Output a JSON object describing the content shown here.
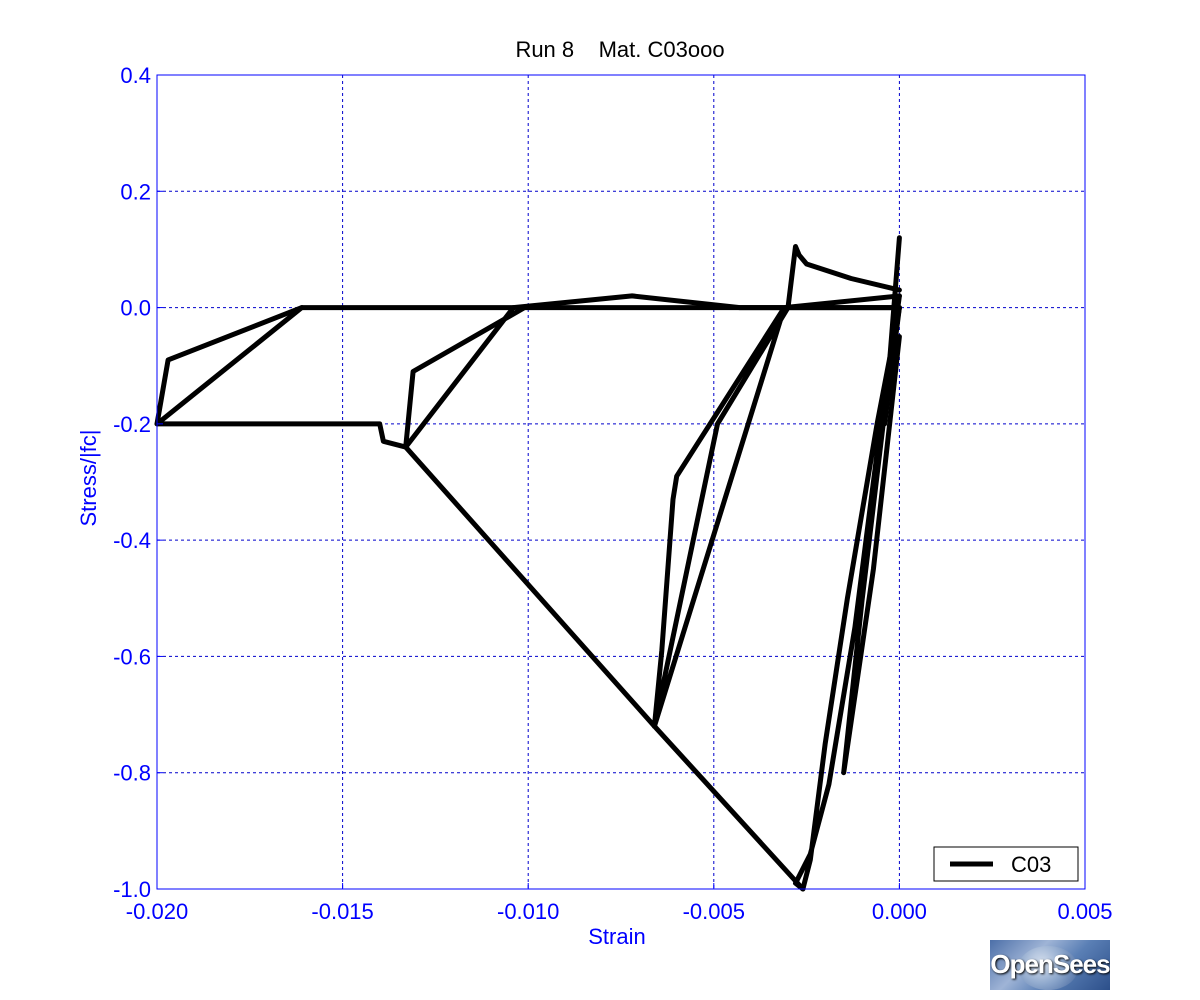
{
  "colors": {
    "axis": "#0000ff",
    "grid": "#0000cc",
    "series": "#000000"
  },
  "logo": {
    "text": "OpenSees"
  },
  "chart_data": {
    "type": "line",
    "title": "Run 8    Mat. C03ooo",
    "xlabel": "Strain",
    "ylabel": "Stress/|fc|",
    "xlim": [
      -0.02,
      0.005
    ],
    "ylim": [
      -1.0,
      0.4
    ],
    "xticks": [
      -0.02,
      -0.015,
      -0.01,
      -0.005,
      0.0,
      0.005
    ],
    "xtick_labels": [
      "-0.020",
      "-0.015",
      "-0.010",
      "-0.005",
      "0.000",
      "0.005"
    ],
    "yticks": [
      0.4,
      0.2,
      0.0,
      -0.2,
      -0.4,
      -0.6,
      -0.8,
      -1.0
    ],
    "ytick_labels": [
      "0.4",
      "0.2",
      "0.0",
      "-0.2",
      "-0.4",
      "-0.6",
      "-0.8",
      "-1.0"
    ],
    "grid": true,
    "legend_position": "bottom-right",
    "series": [
      {
        "name": "C03",
        "color": "#000000",
        "segments": [
          [
            [
              0.0,
              0.0
            ],
            [
              -0.0006,
              -0.2
            ],
            [
              -0.0014,
              -0.5
            ],
            [
              -0.002,
              -0.75
            ],
            [
              -0.0024,
              -0.95
            ],
            [
              -0.0026,
              -1.0
            ],
            [
              -0.0028,
              -0.99
            ],
            [
              -0.0024,
              -0.94
            ],
            [
              -0.0019,
              -0.82
            ],
            [
              -0.0012,
              -0.55
            ],
            [
              -0.0005,
              -0.2
            ],
            [
              0.0,
              0.0
            ],
            [
              -0.0002,
              -0.08
            ],
            [
              -0.0008,
              -0.38
            ],
            [
              -0.0015,
              -0.8
            ],
            [
              -0.0007,
              -0.45
            ],
            [
              0.0,
              -0.05
            ],
            [
              -0.0004,
              -0.18
            ],
            [
              -0.001,
              -0.5
            ],
            [
              -0.0003,
              -0.12
            ],
            [
              0.0,
              0.02
            ]
          ],
          [
            [
              0.0,
              0.03
            ],
            [
              -0.0013,
              0.05
            ],
            [
              -0.0025,
              0.075
            ],
            [
              -0.0027,
              0.09
            ],
            [
              -0.0028,
              0.105
            ],
            [
              -0.003,
              0.0
            ],
            [
              -0.0049,
              -0.2
            ],
            [
              -0.0066,
              -0.72
            ],
            [
              -0.0064,
              -0.59
            ],
            [
              -0.0061,
              -0.33
            ],
            [
              -0.006,
              -0.29
            ],
            [
              -0.0031,
              0.0
            ],
            [
              0.0,
              0.02
            ],
            [
              -0.0031,
              0.0
            ],
            [
              -0.0066,
              -0.72
            ],
            [
              -0.0133,
              -0.24
            ],
            [
              -0.0104,
              0.0
            ],
            [
              -0.0072,
              0.02
            ],
            [
              -0.0043,
              0.0
            ],
            [
              0.0,
              0.0
            ]
          ],
          [
            [
              -0.0133,
              -0.24
            ],
            [
              -0.0131,
              -0.11
            ],
            [
              -0.0101,
              0.0
            ],
            [
              0.0,
              0.0
            ]
          ],
          [
            [
              -0.0133,
              -0.24
            ],
            [
              -0.0139,
              -0.23
            ],
            [
              -0.014,
              -0.2
            ],
            [
              -0.02,
              -0.2
            ],
            [
              -0.0161,
              0.0
            ],
            [
              -0.0104,
              0.0
            ]
          ],
          [
            [
              -0.02,
              -0.2
            ],
            [
              -0.0197,
              -0.09
            ],
            [
              -0.0161,
              0.0
            ]
          ],
          [
            [
              -0.0066,
              -0.72
            ],
            [
              -0.0026,
              -1.0
            ]
          ],
          [
            [
              0.0,
              0.12
            ],
            [
              -0.0004,
              -0.2
            ],
            [
              0.0,
              0.0
            ]
          ]
        ]
      }
    ]
  }
}
